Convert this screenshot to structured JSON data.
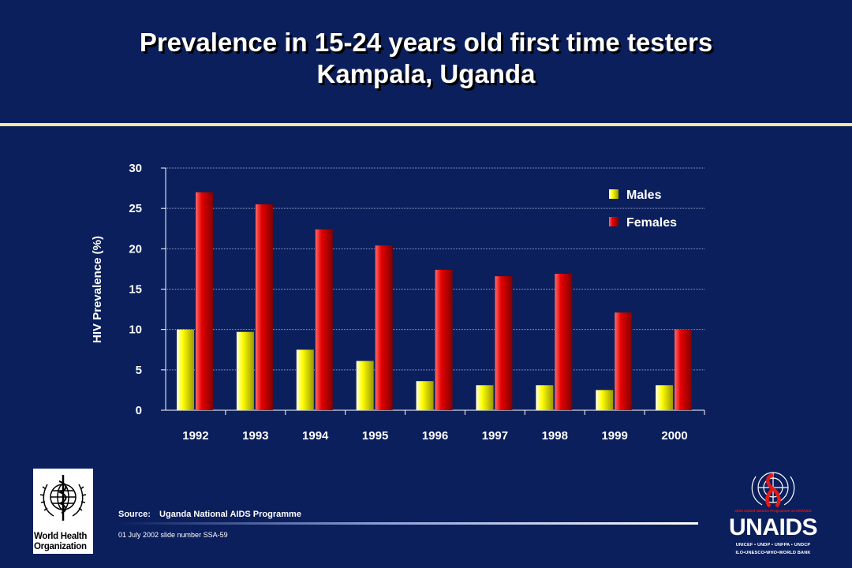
{
  "slide": {
    "title_line1": "Prevalence in 15-24 years old first time testers",
    "title_line2": "Kampala, Uganda",
    "source_label": "Source:",
    "source_text": "Uganda National AIDS Programme",
    "footer": "01 July 2002 slide number SSA-59"
  },
  "logos": {
    "who_text_line1": "World Health",
    "who_text_line2": "Organization",
    "unaids_word": "UNAIDS",
    "unaids_tagline": "Joint United Nations Programme on HIV/AIDS",
    "unaids_line1": "UNICEF • UNDP • UNFPA • UNDCP",
    "unaids_line2": "ILO•UNESCO•WHO•WORLD BANK"
  },
  "colors": {
    "background": "#0b1f5c",
    "males": "#ffff00",
    "females": "#e60000",
    "accent_rule": "#f3e9a2"
  },
  "chart_data": {
    "type": "bar",
    "categories": [
      "1992",
      "1993",
      "1994",
      "1995",
      "1996",
      "1997",
      "1998",
      "1999",
      "2000"
    ],
    "series": [
      {
        "name": "Males",
        "values": [
          10,
          9.7,
          7.5,
          6.1,
          3.6,
          3.1,
          3.1,
          2.5,
          3.1
        ]
      },
      {
        "name": "Females",
        "values": [
          27,
          25.5,
          22.4,
          20.4,
          17.4,
          16.6,
          16.9,
          12.1,
          10
        ]
      }
    ],
    "ylabel": "HIV Prevalence (%)",
    "ylim": [
      0,
      30
    ],
    "yticks": [
      0,
      5,
      10,
      15,
      20,
      25,
      30
    ],
    "grid": true,
    "legend": "top-right"
  }
}
